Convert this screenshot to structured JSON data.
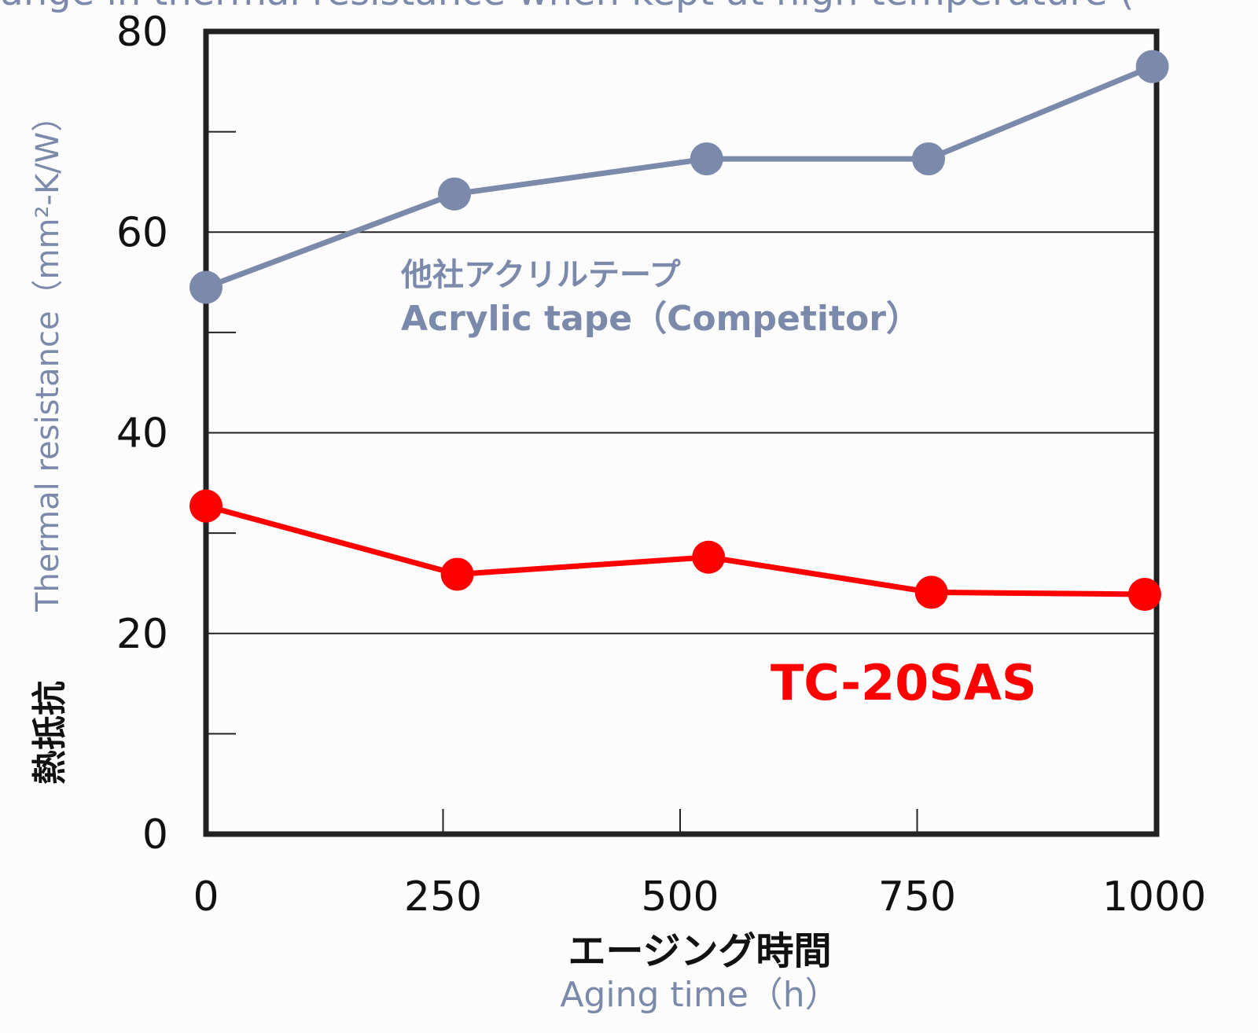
{
  "chart_data": {
    "type": "line",
    "title": "hange in thermal resistance when kept at high temperature (",
    "ylabel_en": "Thermal resistance（mm²-K/W）",
    "ylabel_jp": "熱抵抗",
    "xlabel_jp": "エージング時間",
    "xlabel_en": "Aging time（h）",
    "x_ticks": [
      "0",
      "250",
      "500",
      "750",
      "1000"
    ],
    "y_ticks": [
      "0",
      "20",
      "40",
      "60",
      "80"
    ],
    "xlim": [
      0,
      1000
    ],
    "ylim": [
      0,
      80
    ],
    "y_minor_ticks": [
      10,
      30,
      50,
      70
    ],
    "grid": "horizontal at 20, 40, 60",
    "series": [
      {
        "name": "他社アクリルテープ Acrylic tape（Competitor）",
        "label_jp": "他社アクリルテープ",
        "label_en": "Acrylic tape（Competitor）",
        "color": "#7b8aaa",
        "x": [
          0,
          262,
          528,
          762,
          998
        ],
        "y": [
          54.5,
          63.8,
          67.3,
          67.3,
          76.5
        ]
      },
      {
        "name": "TC-20SAS",
        "label": "TC-20SAS",
        "color": "#ff0000",
        "x": [
          0,
          265,
          530,
          765,
          990
        ],
        "y": [
          32.7,
          25.9,
          27.6,
          24.1,
          23.9
        ]
      }
    ]
  }
}
